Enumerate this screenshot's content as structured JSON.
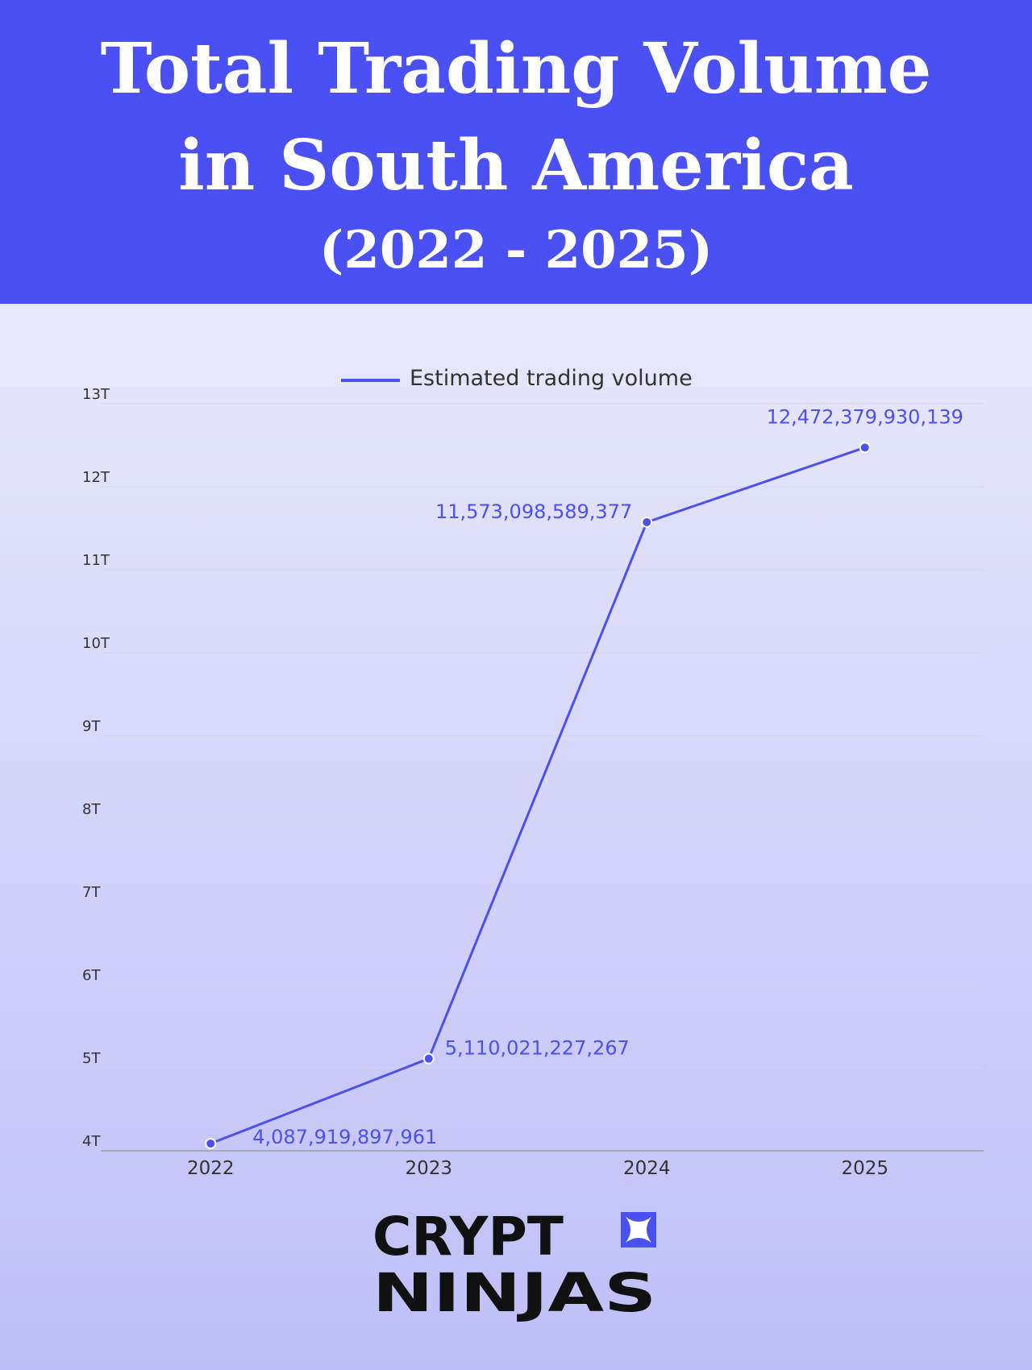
{
  "chart_data": {
    "type": "line",
    "title": "Total Trading Volume in South America",
    "subtitle": "(2022 - 2025)",
    "categories": [
      "2022",
      "2023",
      "2024",
      "2025"
    ],
    "series": [
      {
        "name": "Estimated trading volume",
        "color": "#4b50ef",
        "values": [
          4087919897961,
          5110021227267,
          11573098589377,
          12472379930139
        ],
        "value_labels": [
          "4,087,919,897,961",
          "5,110,021,227,267",
          "11,573,098,589,377",
          "12,472,379,930,139"
        ]
      }
    ],
    "ylim": [
      4000000000000,
      13000000000000
    ],
    "yticks": [
      {
        "value": 4000000000000,
        "label": "4T"
      },
      {
        "value": 5000000000000,
        "label": "5T"
      },
      {
        "value": 6000000000000,
        "label": "6T"
      },
      {
        "value": 7000000000000,
        "label": "7T"
      },
      {
        "value": 8000000000000,
        "label": "8T"
      },
      {
        "value": 9000000000000,
        "label": "9T"
      },
      {
        "value": 10000000000000,
        "label": "10T"
      },
      {
        "value": 11000000000000,
        "label": "11T"
      },
      {
        "value": 12000000000000,
        "label": "12T"
      },
      {
        "value": 13000000000000,
        "label": "13T"
      }
    ],
    "grid": true,
    "legend": "top"
  },
  "brand": {
    "line1": "CRYPT",
    "line2": "NINJAS"
  }
}
